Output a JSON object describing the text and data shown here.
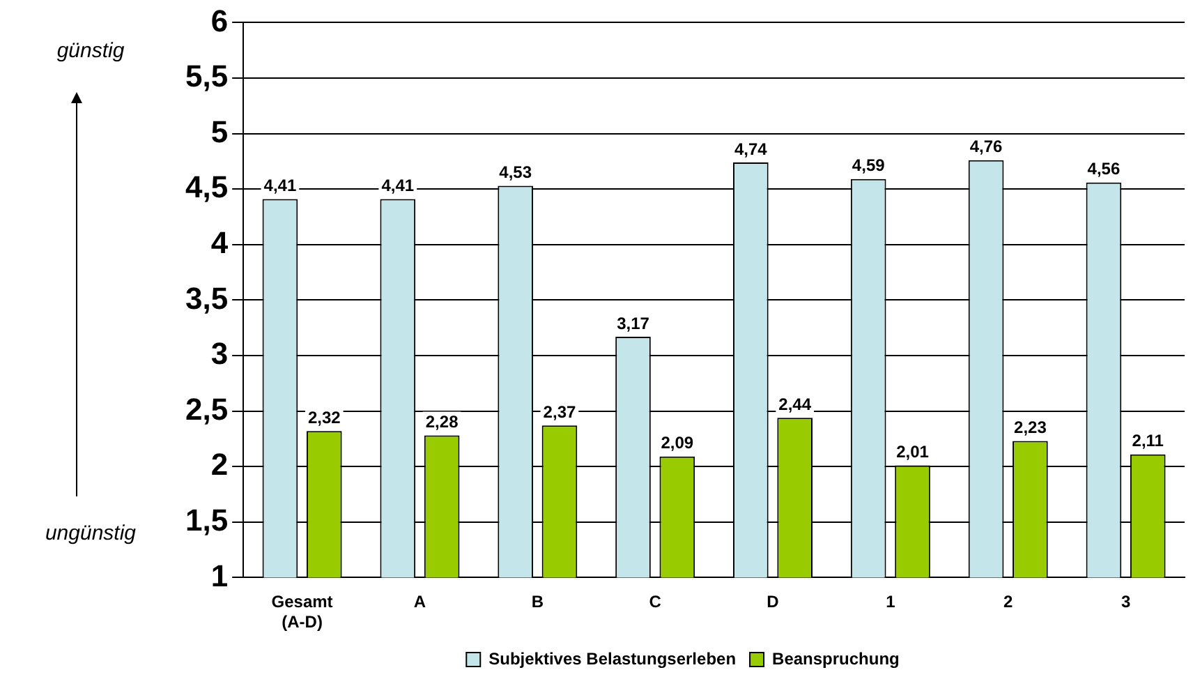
{
  "chart_data": {
    "type": "bar",
    "categories": [
      "Gesamt (A-D)",
      "A",
      "B",
      "C",
      "D",
      "1",
      "2",
      "3"
    ],
    "series": [
      {
        "name": "Subjektives Belastungserleben",
        "color": "#c4e6ea",
        "values": [
          4.41,
          4.41,
          4.53,
          3.17,
          4.74,
          4.59,
          4.76,
          4.56
        ],
        "value_labels": [
          "4,41",
          "4,41",
          "4,53",
          "3,17",
          "4,74",
          "4,59",
          "4,76",
          "4,56"
        ]
      },
      {
        "name": "Beanspruchung",
        "color": "#99cc00",
        "values": [
          2.32,
          2.28,
          2.37,
          2.09,
          2.44,
          2.01,
          2.23,
          2.11
        ],
        "value_labels": [
          "2,32",
          "2,28",
          "2,37",
          "2,09",
          "2,44",
          "2,01",
          "2,23",
          "2,11"
        ]
      }
    ],
    "ylim": [
      1,
      6
    ],
    "yticks": [
      1,
      {
        "value": 1.5,
        "label": "1,5"
      },
      2,
      {
        "value": 2.5,
        "label": "2,5"
      },
      3,
      {
        "value": 3.5,
        "label": "3,5"
      },
      4,
      {
        "value": 4.5,
        "label": "4,5"
      },
      5,
      {
        "value": 5.5,
        "label": "5,5"
      },
      6
    ],
    "grid": "y",
    "legend": "bottom",
    "annotations": [
      "günstig",
      "ungünstig"
    ]
  }
}
